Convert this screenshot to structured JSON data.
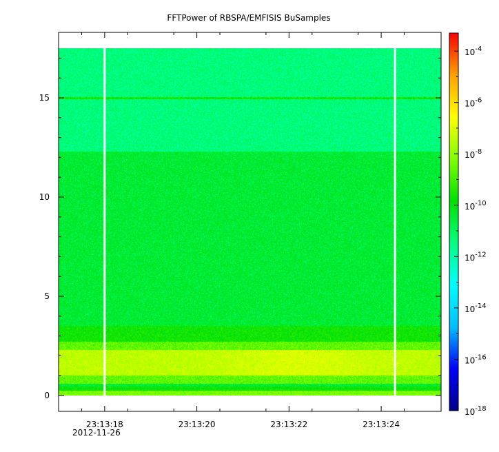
{
  "chart_data": {
    "type": "heatmap",
    "title": "FFTPower of RBSPA/EMFISIS  BuSamples",
    "xlabel": "",
    "ylabel": "",
    "x_ticks": [
      "23:13:18",
      "23:13:20",
      "23:13:22",
      "23:13:24"
    ],
    "x_tick_values_s": [
      18,
      20,
      22,
      24
    ],
    "date_label": "2012-11-26",
    "xlim_s": [
      17.0,
      25.3
    ],
    "y_ticks": [
      "0",
      "5",
      "10",
      "15"
    ],
    "y_tick_values": [
      0,
      5,
      10,
      15
    ],
    "ylim": [
      -0.8,
      18.3
    ],
    "data_extent": {
      "x": [
        17.0,
        25.3
      ],
      "y": [
        0,
        17.5
      ]
    },
    "gaps_s": [
      18.0,
      24.3
    ],
    "line_feature": {
      "y": 15.0,
      "level_exp": -9.6
    },
    "bands": [
      {
        "y": [
          0,
          0.25
        ],
        "level_exp": -8.3
      },
      {
        "y": [
          0.25,
          0.45
        ],
        "level_exp": -9.8
      },
      {
        "y": [
          0.45,
          0.6
        ],
        "level_exp": -10.5
      },
      {
        "y": [
          0.6,
          1.0
        ],
        "level_exp": -8.6
      },
      {
        "y": [
          1.0,
          2.3
        ],
        "level_exp": -7.4
      },
      {
        "y": [
          2.3,
          2.7
        ],
        "level_exp": -8.6
      },
      {
        "y": [
          2.7,
          3.5
        ],
        "level_exp": -9.7
      },
      {
        "y": [
          3.5,
          12.3
        ],
        "level_exp": -10.5
      },
      {
        "y": [
          12.3,
          17.5
        ],
        "level_exp": -11.4
      }
    ],
    "colorbar": {
      "scale": "log",
      "range_exp": [
        -18,
        -3.3
      ],
      "tick_exponents": [
        -4,
        -6,
        -8,
        -10,
        -12,
        -14,
        -16,
        -18
      ],
      "tick_base": "10",
      "colors": [
        "#00008b",
        "#0000ff",
        "#00bfff",
        "#00ffff",
        "#00ff80",
        "#00e000",
        "#80ff00",
        "#ffff00",
        "#ffa000",
        "#ff0000"
      ]
    }
  }
}
